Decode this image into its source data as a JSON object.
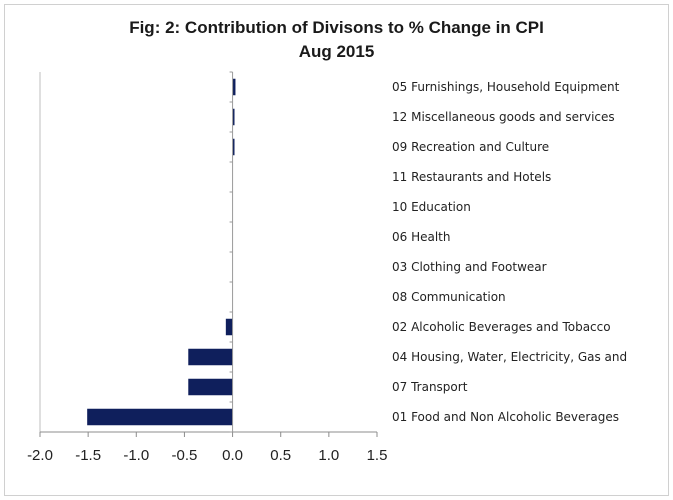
{
  "chart_data": {
    "type": "bar",
    "orientation": "horizontal",
    "title": "Fig: 2: Contribution of Divisons to % Change in CPI",
    "subtitle": "Aug 2015",
    "categories": [
      "05 Furnishings, Household Equipment",
      "12 Miscellaneous goods and services",
      "09 Recreation and Culture",
      "11 Restaurants and Hotels",
      "10 Education",
      "06 Health",
      "03 Clothing and Footwear",
      "08 Communication",
      "02 Alcoholic Beverages and Tobacco",
      "04 Housing, Water, Electricity, Gas and",
      "07 Transport",
      "01 Food and Non Alcoholic Beverages"
    ],
    "values": [
      0.03,
      0.02,
      0.02,
      0.0,
      0.0,
      0.0,
      0.0,
      0.0,
      -0.07,
      -0.46,
      -0.46,
      -1.51
    ],
    "xlim": [
      -2.0,
      1.5
    ],
    "xticks": [
      "-2.0",
      "-1.5",
      "-1.0",
      "-0.5",
      "0.0",
      "0.5",
      "1.0",
      "1.5"
    ],
    "bar_color": "#0f1f5c",
    "grid": false,
    "legend": "none"
  }
}
